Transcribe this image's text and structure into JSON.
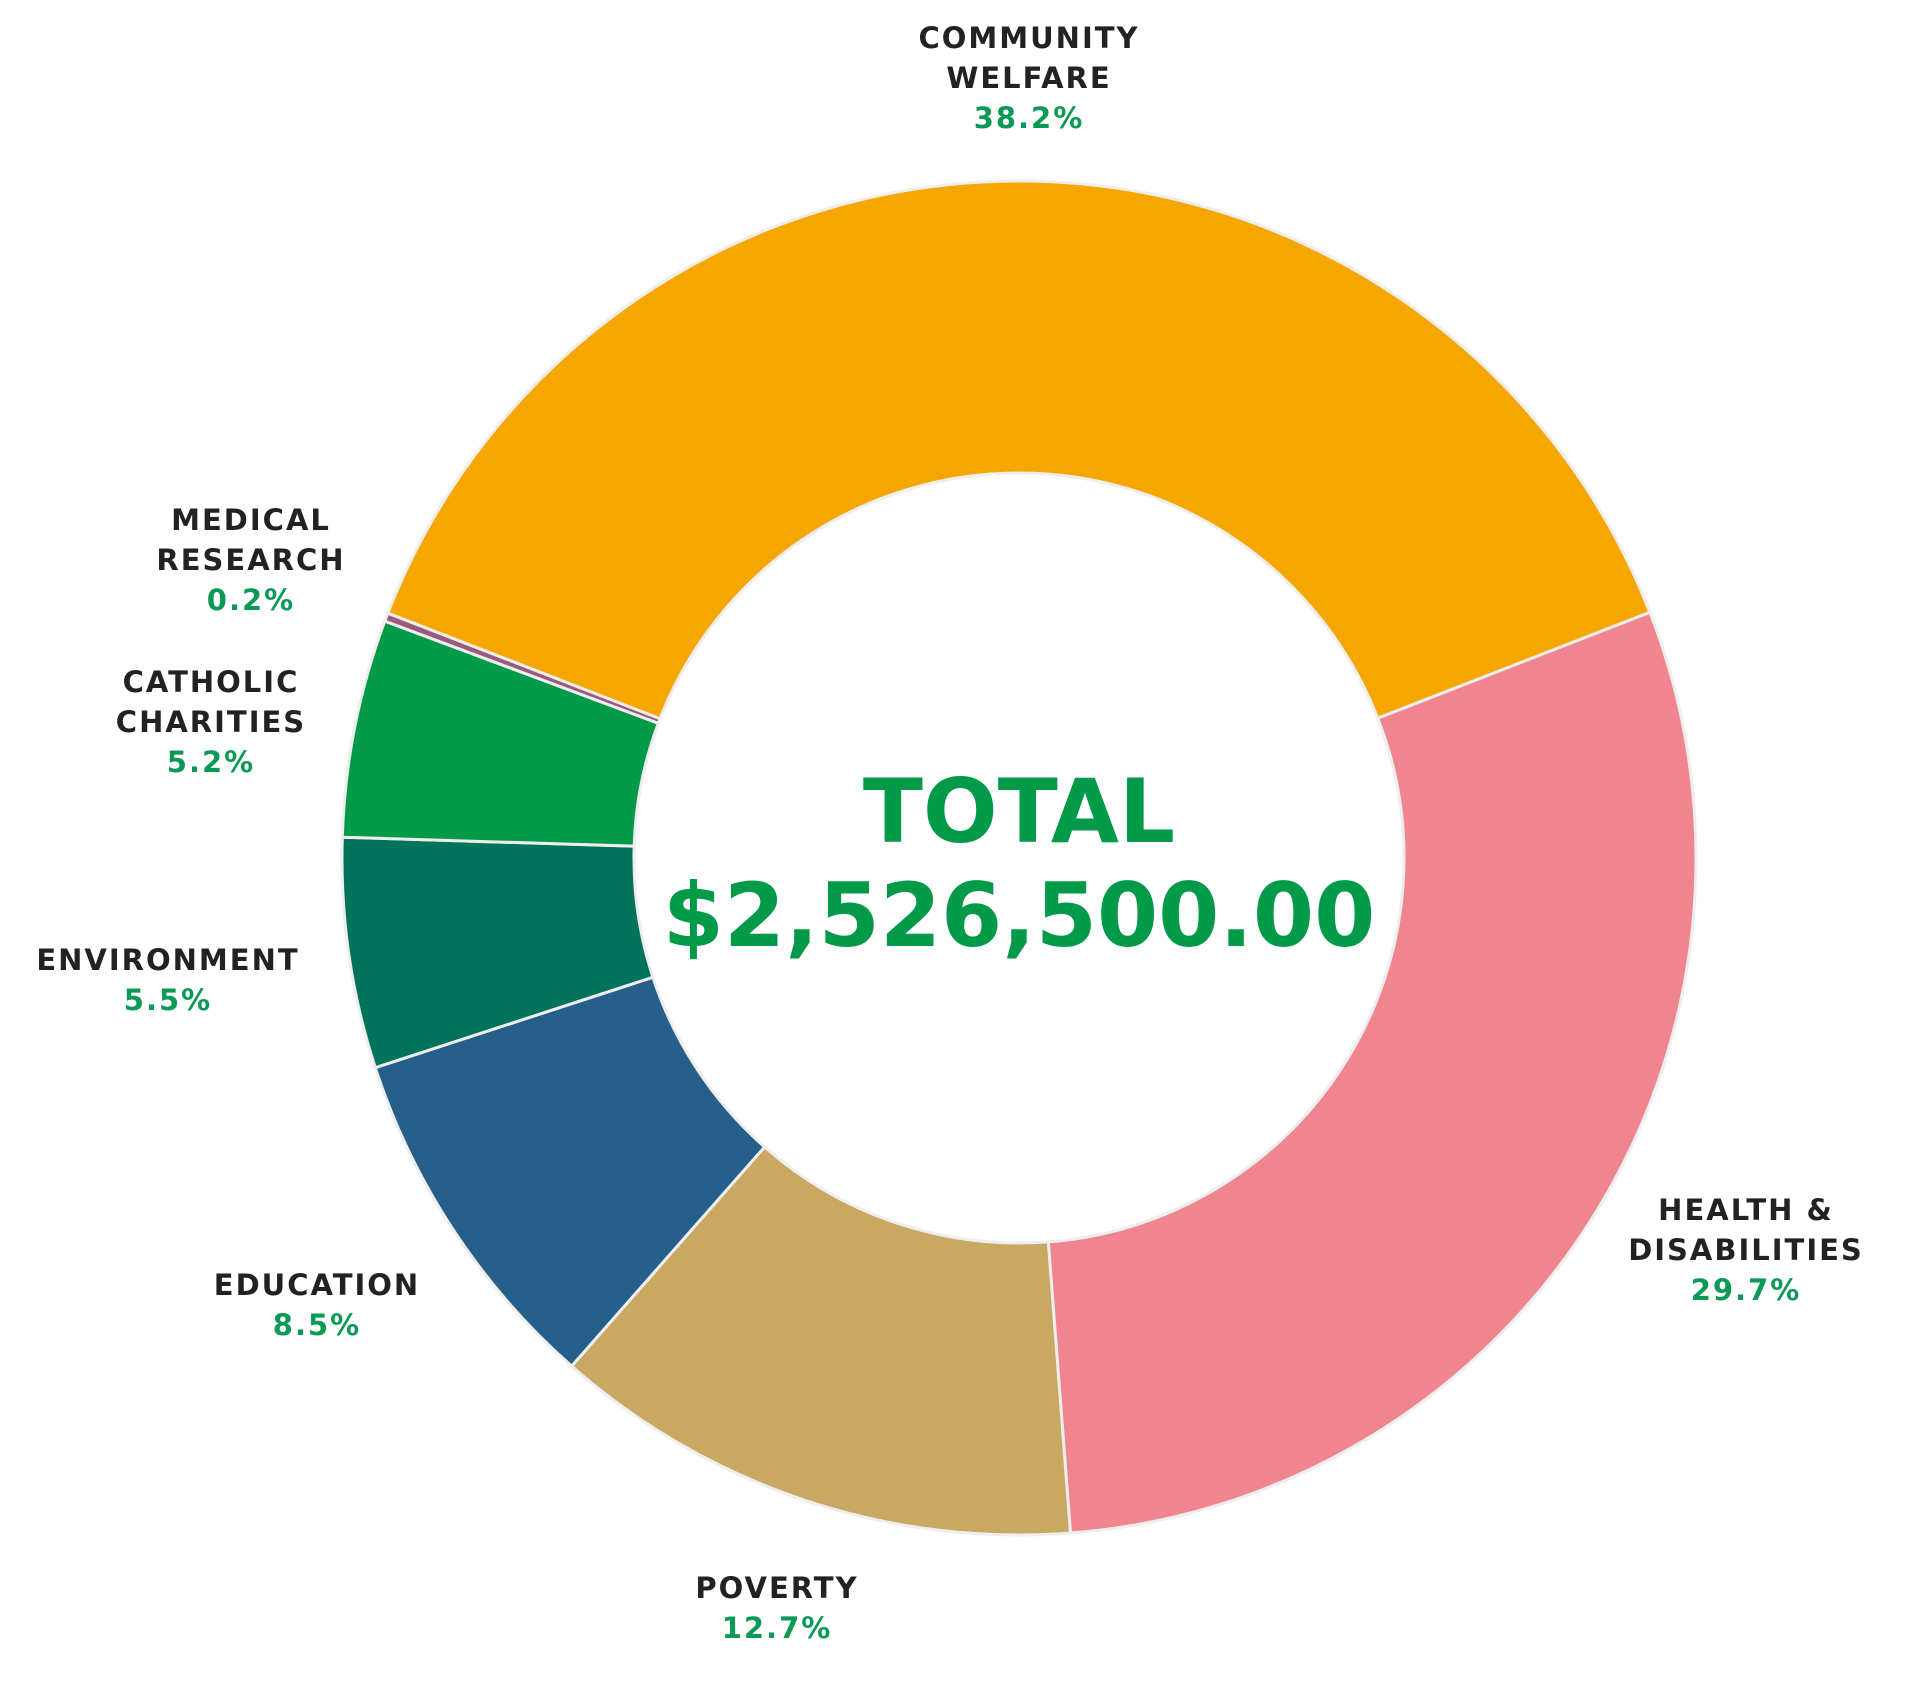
{
  "chart_data": {
    "type": "donut",
    "categories": [
      "COMMUNITY WELFARE",
      "HEALTH & DISABILITIES",
      "POVERTY",
      "EDUCATION",
      "ENVIRONMENT",
      "CATHOLIC CHARITIES",
      "MEDICAL RESEARCH"
    ],
    "values": [
      38.2,
      29.7,
      12.7,
      8.5,
      5.5,
      5.2,
      0.2
    ],
    "value_labels": [
      "38.2%",
      "29.7%",
      "12.7%",
      "8.5%",
      "5.5%",
      "5.2%",
      "0.2%"
    ],
    "colors": [
      "#f5a700",
      "#f0858f",
      "#c9a861",
      "#265f8a",
      "#00735a",
      "#009a49",
      "#9b5a7c"
    ],
    "center_title": "TOTAL",
    "total": {
      "value": 2526500,
      "label": "$2,526,500.00"
    }
  }
}
